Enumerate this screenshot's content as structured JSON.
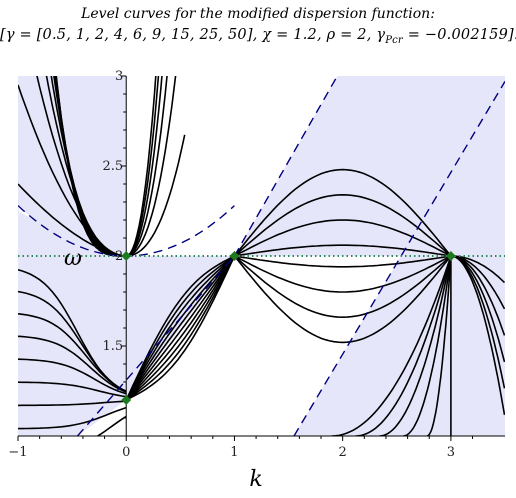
{
  "title": {
    "line1": "Level curves for the modified dispersion function:",
    "gamma_label": "γ = [0.5, 1, 2, 4, 6, 9, 15, 25, 50]",
    "chi_label": "χ = 1.2",
    "rho_label": "ρ = 2",
    "gpcr_label": "γ",
    "gpcr_sub": "Pcr",
    "gpcr_value": "= −0.002159"
  },
  "chart_data": {
    "type": "line",
    "title": "Level curves for the modified dispersion function:",
    "parameters": {
      "gamma": [
        0.5,
        1,
        2,
        4,
        6,
        9,
        15,
        25,
        50
      ],
      "chi": 1.2,
      "rho": 2,
      "gamma_Pcr": -0.002159
    },
    "xlabel": "k",
    "ylabel": "ω",
    "xlim": [
      -1,
      3.5
    ],
    "ylim": [
      1.0,
      3.0
    ],
    "x_ticks": [
      -1,
      0,
      1,
      2,
      3
    ],
    "y_ticks": [
      1.5,
      2,
      2.5,
      3
    ],
    "x_tick_labels": [
      "−1",
      "0",
      "1",
      "2",
      "3"
    ],
    "y_tick_labels": [
      "1.5",
      "2",
      "2.5",
      "3"
    ],
    "fixed_points": [
      {
        "k": 0,
        "omega": 2.0
      },
      {
        "k": 1,
        "omega": 2.0
      },
      {
        "k": 3,
        "omega": 2.0
      },
      {
        "k": 0,
        "omega": 1.2
      }
    ],
    "dotted_line": {
      "omega": 2.0
    },
    "dashed_asymptotes": [
      {
        "k": [
          -0.45,
          1.0
        ],
        "omega": [
          1.0,
          2.0
        ]
      },
      {
        "k": [
          1.0,
          1.95
        ],
        "omega": [
          2.0,
          3.0
        ]
      },
      {
        "k": [
          1.55,
          3.5
        ],
        "omega": [
          1.0,
          2.97
        ]
      },
      {
        "k": [
          -1.0,
          0.0,
          1.0
        ],
        "omega": [
          2.28,
          2.0,
          2.28
        ],
        "curve": "parabola"
      }
    ],
    "colors": {
      "shade": "#e6e6fa",
      "curve": "#000000",
      "dashed": "#000080",
      "dotted": "#2e8b57",
      "point": "#1f7a1f"
    },
    "shaded_regions": "light lavender background regions bounded by the dashed asymptotes",
    "grid": false
  }
}
